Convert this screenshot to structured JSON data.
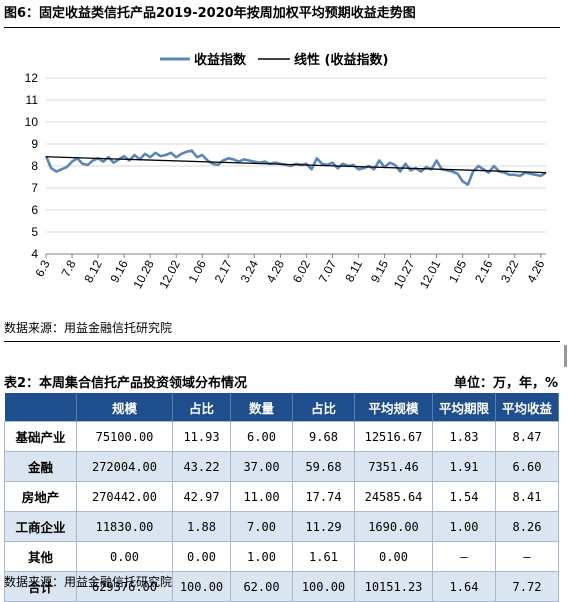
{
  "figure": {
    "title": "图6：固定收益类信托产品2019-2020年按周加权平均预期收益走势图",
    "source": "数据来源：用益金融信托研究院"
  },
  "chart_data": {
    "type": "line",
    "legend": {
      "placement": "top-center",
      "items": [
        "收益指数",
        "线性 (收益指数)"
      ]
    },
    "colors": {
      "series": "#5b86b8",
      "trend": "#000000"
    },
    "ylim": [
      4,
      12
    ],
    "yticks": [
      4,
      5,
      6,
      7,
      8,
      9,
      10,
      11,
      12
    ],
    "grid": "horizontal",
    "x_tick_labels": [
      "6.3",
      "7.8",
      "8.12",
      "9.16",
      "10.28",
      "12.02",
      "1.06",
      "2.17",
      "3.24",
      "4.28",
      "6.02",
      "7.07",
      "8.11",
      "9.15",
      "10.27",
      "12.01",
      "1.05",
      "2.16",
      "3.22",
      "4.26"
    ],
    "x_tick_positions": [
      0,
      5,
      10,
      15,
      20,
      25,
      30,
      35,
      40,
      45,
      50,
      55,
      60,
      65,
      70,
      75,
      80,
      85,
      90,
      95
    ],
    "series": [
      {
        "name": "收益指数",
        "values": [
          8.45,
          7.9,
          7.75,
          7.85,
          7.95,
          8.2,
          8.35,
          8.1,
          8.05,
          8.25,
          8.35,
          8.2,
          8.4,
          8.15,
          8.3,
          8.45,
          8.25,
          8.5,
          8.3,
          8.55,
          8.4,
          8.6,
          8.45,
          8.5,
          8.6,
          8.4,
          8.55,
          8.65,
          8.7,
          8.4,
          8.5,
          8.25,
          8.1,
          8.05,
          8.25,
          8.35,
          8.3,
          8.2,
          8.3,
          8.25,
          8.2,
          8.15,
          8.2,
          8.1,
          8.15,
          8.1,
          8.05,
          8.0,
          8.1,
          8.05,
          8.1,
          7.85,
          8.35,
          8.1,
          8.05,
          8.15,
          7.9,
          8.1,
          8.0,
          8.05,
          7.85,
          7.9,
          8.0,
          7.85,
          8.25,
          7.95,
          8.15,
          8.05,
          7.75,
          8.1,
          7.8,
          7.9,
          7.75,
          7.95,
          7.85,
          8.25,
          7.85,
          7.8,
          7.75,
          7.65,
          7.3,
          7.15,
          7.75,
          8.0,
          7.85,
          7.7,
          8.0,
          7.75,
          7.7,
          7.6,
          7.6,
          7.55,
          7.7,
          7.65,
          7.6,
          7.55,
          7.7
        ],
        "trend": [
          8.42,
          7.7
        ]
      }
    ]
  },
  "table": {
    "title": "表2：本周集合信托产品投资领域分布情况",
    "unit": "单位：万，年，%",
    "headers": [
      "",
      "规模",
      "占比",
      "数量",
      "占比",
      "平均规模",
      "平均期限",
      "平均收益"
    ],
    "rows": [
      [
        "基础产业",
        "75100.00",
        "11.93",
        "6.00",
        "9.68",
        "12516.67",
        "1.83",
        "8.47"
      ],
      [
        "金融",
        "272004.00",
        "43.22",
        "37.00",
        "59.68",
        "7351.46",
        "1.91",
        "6.60"
      ],
      [
        "房地产",
        "270442.00",
        "42.97",
        "11.00",
        "17.74",
        "24585.64",
        "1.54",
        "8.41"
      ],
      [
        "工商企业",
        "11830.00",
        "1.88",
        "7.00",
        "11.29",
        "1690.00",
        "1.00",
        "8.26"
      ],
      [
        "其他",
        "0.00",
        "0.00",
        "1.00",
        "1.61",
        "0.00",
        "–",
        "–"
      ],
      [
        "合计",
        "629376.00",
        "100.00",
        "62.00",
        "100.00",
        "10151.23",
        "1.64",
        "7.72"
      ]
    ],
    "source": "数据来源：用益金融信托研究院"
  }
}
